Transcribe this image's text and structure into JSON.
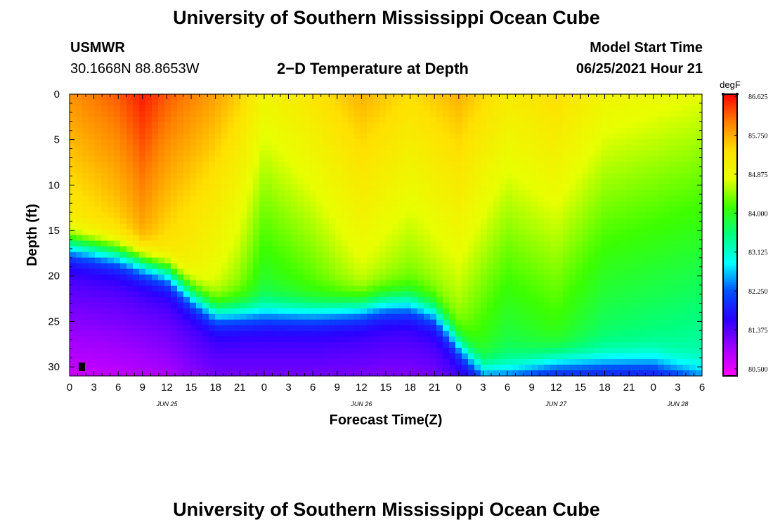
{
  "header": {
    "title_top": "University of Southern Mississippi Ocean Cube",
    "title_bottom": "University of Southern Mississippi Ocean Cube",
    "station": "USMWR",
    "coords": "30.1668N  88.8653W",
    "plot_title": "2−D Temperature at Depth",
    "model_label": "Model Start Time",
    "model_time": "06/25/2021 Hour 21"
  },
  "chart_data": {
    "type": "heatmap",
    "title": "2−D Temperature at Depth",
    "xlabel": "Forecast Time(Z)",
    "ylabel": "Depth (ft)",
    "x_hours_range": [
      0,
      78
    ],
    "y_range_ft": [
      0,
      31
    ],
    "x_tick_labels": [
      "0",
      "3",
      "6",
      "9",
      "12",
      "15",
      "18",
      "21",
      "0",
      "3",
      "6",
      "9",
      "12",
      "15",
      "18",
      "21",
      "0",
      "3",
      "6",
      "9",
      "12",
      "15",
      "18",
      "21",
      "0",
      "3",
      "6"
    ],
    "y_ticks": [
      0,
      5,
      10,
      15,
      20,
      25,
      30
    ],
    "date_labels": [
      {
        "text": "JUN 25",
        "hour": 12
      },
      {
        "text": "JUN 26",
        "hour": 36
      },
      {
        "text": "JUN 27",
        "hour": 60
      },
      {
        "text": "JUN 28",
        "hour": 75
      }
    ],
    "colorbar": {
      "unit": "degF",
      "min": 80.5,
      "max": 86.625,
      "labels": [
        "86.625",
        "85.750",
        "84.875",
        "84.000",
        "83.125",
        "82.250",
        "81.375",
        "80.500"
      ],
      "colors": [
        "#ff00ff",
        "#9f00ff",
        "#2a00ff",
        "#0050ff",
        "#00ffff",
        "#00ff80",
        "#3cff00",
        "#e8ff00",
        "#ffe000",
        "#ff8000",
        "#ff0000"
      ]
    },
    "thermocline_depth_ft": {
      "hours": [
        0,
        6,
        9,
        12,
        15,
        18,
        20,
        24,
        30,
        36,
        39,
        42,
        45,
        48,
        51,
        54,
        57,
        60,
        66,
        72,
        78
      ],
      "values": [
        16.5,
        17.5,
        18.5,
        19.5,
        22,
        24,
        24,
        24,
        24,
        23.5,
        23.0,
        23.0,
        24,
        27.5,
        30.5,
        30.5,
        30,
        29.5,
        29.5,
        29.5,
        31
      ]
    },
    "surface_temp_degF": {
      "hours": [
        0,
        6,
        9,
        12,
        15,
        18,
        21,
        24,
        30,
        36,
        42,
        48,
        54,
        60,
        66,
        72,
        78
      ],
      "values": [
        85.9,
        86.2,
        86.5,
        86.2,
        86.0,
        85.8,
        85.5,
        85.0,
        85.3,
        85.7,
        85.4,
        85.7,
        85.2,
        85.4,
        85.0,
        84.9,
        84.8
      ]
    },
    "bottom_temp_degF": 81.6
  }
}
